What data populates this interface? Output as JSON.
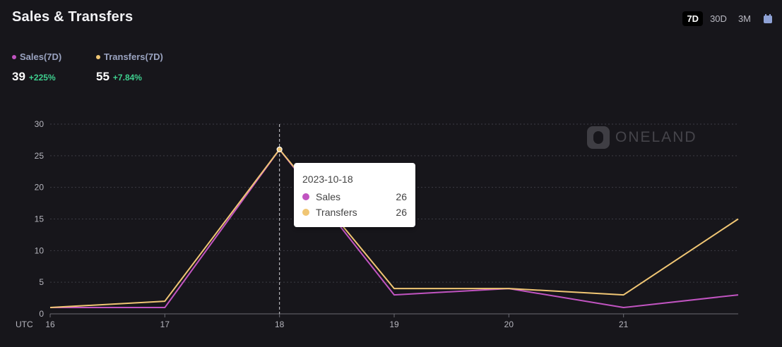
{
  "header": {
    "title": "Sales & Transfers",
    "tabs": [
      {
        "label": "7D",
        "active": true
      },
      {
        "label": "30D",
        "active": false
      },
      {
        "label": "3M",
        "active": false
      }
    ],
    "calendar_icon": "calendar-icon"
  },
  "legend": {
    "sales": {
      "label": "Sales(7D)",
      "value": "39",
      "change": "+225%",
      "color": "#c154c1"
    },
    "transfers": {
      "label": "Transfers(7D)",
      "value": "55",
      "change": "+7.84%",
      "color": "#f0c674"
    }
  },
  "watermark": {
    "text": "ONELAND"
  },
  "tooltip": {
    "date": "2023-10-18",
    "rows": [
      {
        "name": "Sales",
        "value": "26",
        "color": "#c154c1"
      },
      {
        "name": "Transfers",
        "value": "26",
        "color": "#f0c674"
      }
    ]
  },
  "chart_data": {
    "type": "line",
    "x_axis_label": "UTC",
    "x_ticks": [
      "16",
      "17",
      "18",
      "19",
      "20",
      "21"
    ],
    "x": [
      16,
      17,
      18,
      19,
      20,
      21,
      22
    ],
    "xlim": [
      16,
      22
    ],
    "ylim": [
      0,
      30
    ],
    "y_ticks": [
      0,
      5,
      10,
      15,
      20,
      25,
      30
    ],
    "grid": true,
    "series": [
      {
        "name": "Sales",
        "color": "#c154c1",
        "values": [
          1,
          1,
          26,
          3,
          4,
          1,
          3
        ]
      },
      {
        "name": "Transfers",
        "color": "#f0c674",
        "values": [
          1,
          2,
          26,
          4,
          4,
          3,
          15
        ]
      }
    ],
    "highlight_x": 18
  }
}
